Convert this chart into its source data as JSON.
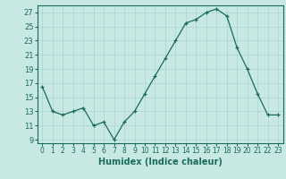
{
  "x": [
    0,
    1,
    2,
    3,
    4,
    5,
    6,
    7,
    8,
    9,
    10,
    11,
    12,
    13,
    14,
    15,
    16,
    17,
    18,
    19,
    20,
    21,
    22,
    23
  ],
  "y": [
    16.5,
    13,
    12.5,
    13,
    13.5,
    11,
    11.5,
    9,
    11.5,
    13,
    15.5,
    18,
    20.5,
    23,
    25.5,
    26,
    27,
    27.5,
    26.5,
    22,
    19,
    15.5,
    12.5,
    12.5
  ],
  "bg_color": "#c8e8e4",
  "grid_color": "#aad4d0",
  "line_color": "#1a6b5a",
  "marker_color": "#1a6b5a",
  "xlabel": "Humidex (Indice chaleur)",
  "ylim": [
    8.5,
    28
  ],
  "xlim": [
    -0.5,
    23.5
  ],
  "yticks": [
    9,
    11,
    13,
    15,
    17,
    19,
    21,
    23,
    25,
    27
  ],
  "xticks": [
    0,
    1,
    2,
    3,
    4,
    5,
    6,
    7,
    8,
    9,
    10,
    11,
    12,
    13,
    14,
    15,
    16,
    17,
    18,
    19,
    20,
    21,
    22,
    23
  ]
}
